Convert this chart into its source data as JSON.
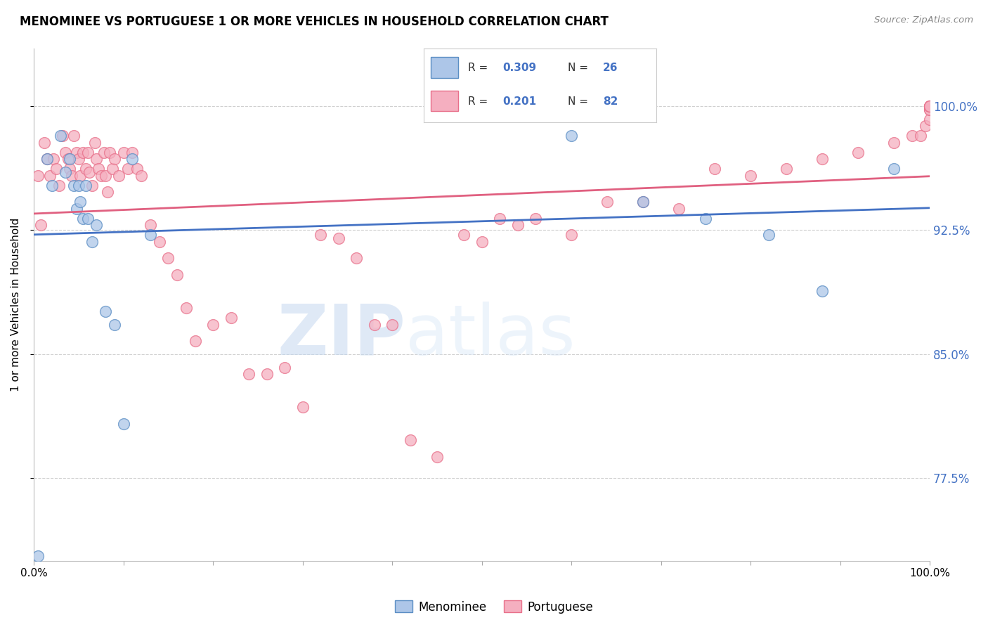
{
  "title": "MENOMINEE VS PORTUGUESE 1 OR MORE VEHICLES IN HOUSEHOLD CORRELATION CHART",
  "source": "Source: ZipAtlas.com",
  "ylabel": "1 or more Vehicles in Household",
  "xlim": [
    0.0,
    1.0
  ],
  "ylim": [
    0.725,
    1.035
  ],
  "yticks": [
    0.775,
    0.85,
    0.925,
    1.0
  ],
  "ytick_labels": [
    "77.5%",
    "85.0%",
    "92.5%",
    "100.0%"
  ],
  "xticks": [
    0.0,
    0.1,
    0.2,
    0.3,
    0.4,
    0.5,
    0.6,
    0.7,
    0.8,
    0.9,
    1.0
  ],
  "xtick_labels": [
    "0.0%",
    "",
    "",
    "",
    "",
    "",
    "",
    "",
    "",
    "",
    "100.0%"
  ],
  "menominee_x": [
    0.005,
    0.015,
    0.02,
    0.03,
    0.035,
    0.04,
    0.045,
    0.048,
    0.05,
    0.052,
    0.055,
    0.058,
    0.06,
    0.065,
    0.07,
    0.08,
    0.09,
    0.1,
    0.11,
    0.13,
    0.6,
    0.68,
    0.75,
    0.82,
    0.88,
    0.96
  ],
  "menominee_y": [
    0.728,
    0.968,
    0.952,
    0.982,
    0.96,
    0.968,
    0.952,
    0.938,
    0.952,
    0.942,
    0.932,
    0.952,
    0.932,
    0.918,
    0.928,
    0.876,
    0.868,
    0.808,
    0.968,
    0.922,
    0.982,
    0.942,
    0.932,
    0.922,
    0.888,
    0.962
  ],
  "portuguese_x": [
    0.005,
    0.008,
    0.012,
    0.015,
    0.018,
    0.022,
    0.025,
    0.028,
    0.032,
    0.035,
    0.038,
    0.04,
    0.042,
    0.045,
    0.048,
    0.05,
    0.052,
    0.055,
    0.058,
    0.06,
    0.062,
    0.065,
    0.068,
    0.07,
    0.072,
    0.075,
    0.078,
    0.08,
    0.082,
    0.085,
    0.088,
    0.09,
    0.095,
    0.1,
    0.105,
    0.11,
    0.115,
    0.12,
    0.13,
    0.14,
    0.15,
    0.16,
    0.17,
    0.18,
    0.2,
    0.22,
    0.24,
    0.26,
    0.28,
    0.3,
    0.32,
    0.34,
    0.36,
    0.38,
    0.4,
    0.42,
    0.45,
    0.48,
    0.5,
    0.52,
    0.54,
    0.56,
    0.6,
    0.64,
    0.68,
    0.72,
    0.76,
    0.8,
    0.84,
    0.88,
    0.92,
    0.96,
    0.98,
    0.99,
    0.995,
    1.0,
    1.0,
    1.0,
    1.0,
    1.0,
    1.0,
    1.0
  ],
  "portuguese_y": [
    0.958,
    0.928,
    0.978,
    0.968,
    0.958,
    0.968,
    0.962,
    0.952,
    0.982,
    0.972,
    0.968,
    0.962,
    0.958,
    0.982,
    0.972,
    0.968,
    0.958,
    0.972,
    0.962,
    0.972,
    0.96,
    0.952,
    0.978,
    0.968,
    0.962,
    0.958,
    0.972,
    0.958,
    0.948,
    0.972,
    0.962,
    0.968,
    0.958,
    0.972,
    0.962,
    0.972,
    0.962,
    0.958,
    0.928,
    0.918,
    0.908,
    0.898,
    0.878,
    0.858,
    0.868,
    0.872,
    0.838,
    0.838,
    0.842,
    0.818,
    0.922,
    0.92,
    0.908,
    0.868,
    0.868,
    0.798,
    0.788,
    0.922,
    0.918,
    0.932,
    0.928,
    0.932,
    0.922,
    0.942,
    0.942,
    0.938,
    0.962,
    0.958,
    0.962,
    0.968,
    0.972,
    0.978,
    0.982,
    0.982,
    0.988,
    0.992,
    0.998,
    0.998,
    1.0,
    1.0,
    1.0,
    1.0
  ],
  "menominee_color": "#adc6e8",
  "portuguese_color": "#f5afc0",
  "menominee_edge_color": "#5b8ec4",
  "portuguese_edge_color": "#e8708a",
  "menominee_line_color": "#4472c4",
  "portuguese_line_color": "#e06080",
  "legend_R_menominee": "0.309",
  "legend_N_menominee": "26",
  "legend_R_portuguese": "0.201",
  "legend_N_portuguese": "82",
  "watermark_zip": "ZIP",
  "watermark_atlas": "atlas",
  "grid_color": "#d0d0d0",
  "background_color": "#ffffff",
  "right_label_color": "#4472c4",
  "marker_size": 130,
  "alpha": 0.75
}
